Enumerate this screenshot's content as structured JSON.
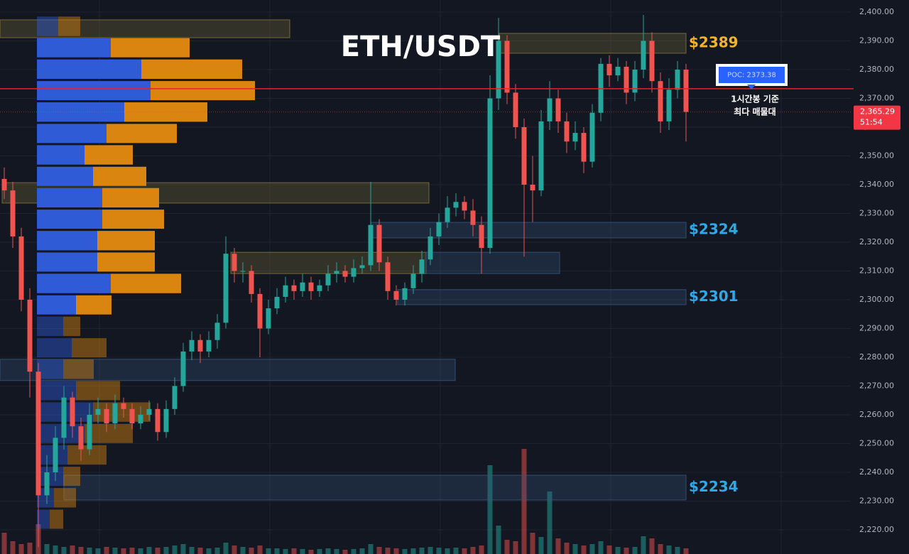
{
  "chart_data": {
    "type": "candlestick",
    "title": "ETH/USDT",
    "ylim": [
      2211.6,
      2404.2
    ],
    "yticks": [
      {
        "value": 2220,
        "label": "2,220.00"
      },
      {
        "value": 2230,
        "label": "2,230.00"
      },
      {
        "value": 2240,
        "label": "2,240.00"
      },
      {
        "value": 2250,
        "label": "2,250.00"
      },
      {
        "value": 2260,
        "label": "2,260.00"
      },
      {
        "value": 2270,
        "label": "2,270.00"
      },
      {
        "value": 2280,
        "label": "2,280.00"
      },
      {
        "value": 2290,
        "label": "2,290.00"
      },
      {
        "value": 2300,
        "label": "2,300.00"
      },
      {
        "value": 2310,
        "label": "2,310.00"
      },
      {
        "value": 2320,
        "label": "2,320.00"
      },
      {
        "value": 2330,
        "label": "2,330.00"
      },
      {
        "value": 2340,
        "label": "2,340.00"
      },
      {
        "value": 2350,
        "label": "2,350.00"
      },
      {
        "value": 2360,
        "label": "2,360.00"
      },
      {
        "value": 2370,
        "label": "2,370.00"
      },
      {
        "value": 2380,
        "label": "2,380.00"
      },
      {
        "value": 2390,
        "label": "2,390.00"
      },
      {
        "value": 2400,
        "label": "2,400.00"
      }
    ],
    "grid": true,
    "up_color": "#26a69a",
    "down_color": "#ef5350",
    "open": [
      2342,
      2338,
      2322,
      2300,
      2275,
      2232,
      2240,
      2252,
      2266,
      2256,
      2248,
      2260,
      2262,
      2257,
      2264,
      2262,
      2257,
      2260,
      2262,
      2254,
      2262,
      2270,
      2282,
      2286,
      2282,
      2286,
      2292,
      2316,
      2310,
      2310,
      2302,
      2290,
      2297,
      2301,
      2305,
      2303,
      2306,
      2303,
      2305,
      2309,
      2310,
      2308,
      2311,
      2312,
      2326,
      2313,
      2303,
      2300,
      2304,
      2309,
      2314,
      2322,
      2327,
      2332,
      2334,
      2331,
      2326,
      2318,
      2370,
      2390,
      2372,
      2360,
      2340,
      2338,
      2362,
      2370,
      2362,
      2355,
      2358,
      2348,
      2365,
      2382,
      2378,
      2381,
      2372,
      2380,
      2390,
      2376,
      2362,
      2373,
      2380
    ],
    "high": [
      2346,
      2341,
      2325,
      2304,
      2278,
      2246,
      2256,
      2270,
      2268,
      2259,
      2264,
      2266,
      2264,
      2267,
      2266,
      2264,
      2263,
      2265,
      2264,
      2265,
      2273,
      2285,
      2289,
      2288,
      2289,
      2295,
      2322,
      2318,
      2313,
      2312,
      2304,
      2300,
      2304,
      2308,
      2307,
      2309,
      2308,
      2307,
      2312,
      2313,
      2312,
      2314,
      2315,
      2341,
      2328,
      2315,
      2305,
      2306,
      2312,
      2317,
      2325,
      2330,
      2336,
      2337,
      2336,
      2335,
      2329,
      2378,
      2398,
      2392,
      2375,
      2363,
      2350,
      2366,
      2376,
      2373,
      2365,
      2362,
      2360,
      2368,
      2384,
      2385,
      2384,
      2383,
      2383,
      2399,
      2393,
      2379,
      2377,
      2383,
      2382
    ],
    "low": [
      2335,
      2318,
      2296,
      2266,
      2214,
      2229,
      2237,
      2248,
      2252,
      2244,
      2246,
      2257,
      2254,
      2255,
      2259,
      2255,
      2255,
      2258,
      2251,
      2252,
      2260,
      2268,
      2279,
      2278,
      2280,
      2283,
      2290,
      2306,
      2306,
      2299,
      2280,
      2288,
      2295,
      2299,
      2300,
      2301,
      2300,
      2301,
      2303,
      2306,
      2306,
      2306,
      2309,
      2310,
      2310,
      2300,
      2298,
      2298,
      2302,
      2306,
      2312,
      2319,
      2325,
      2329,
      2328,
      2322,
      2309,
      2316,
      2366,
      2368,
      2356,
      2315,
      2327,
      2336,
      2359,
      2358,
      2351,
      2352,
      2344,
      2346,
      2362,
      2374,
      2376,
      2368,
      2369,
      2377,
      2372,
      2358,
      2359,
      2370,
      2355
    ],
    "close": [
      2338,
      2322,
      2300,
      2275,
      2232,
      2240,
      2252,
      2266,
      2256,
      2248,
      2260,
      2262,
      2257,
      2264,
      2262,
      2257,
      2260,
      2262,
      2254,
      2262,
      2270,
      2282,
      2286,
      2282,
      2286,
      2292,
      2316,
      2310,
      2310,
      2302,
      2290,
      2297,
      2301,
      2305,
      2303,
      2306,
      2303,
      2305,
      2309,
      2310,
      2308,
      2311,
      2312,
      2326,
      2313,
      2303,
      2300,
      2304,
      2309,
      2314,
      2322,
      2327,
      2332,
      2334,
      2331,
      2326,
      2318,
      2370,
      2390,
      2372,
      2360,
      2340,
      2338,
      2362,
      2370,
      2362,
      2355,
      2358,
      2348,
      2365,
      2382,
      2378,
      2381,
      2372,
      2380,
      2390,
      2376,
      2362,
      2373,
      2380,
      2365.29
    ],
    "volume": [
      30,
      18,
      14,
      16,
      42,
      14,
      12,
      10,
      12,
      10,
      9,
      8,
      10,
      9,
      8,
      9,
      8,
      10,
      9,
      10,
      12,
      14,
      10,
      9,
      8,
      9,
      16,
      12,
      10,
      9,
      12,
      8,
      8,
      7,
      8,
      7,
      6,
      7,
      8,
      7,
      6,
      7,
      8,
      14,
      10,
      9,
      8,
      7,
      8,
      9,
      10,
      9,
      8,
      9,
      8,
      10,
      12,
      125,
      40,
      20,
      18,
      148,
      30,
      24,
      88,
      22,
      16,
      14,
      12,
      14,
      18,
      12,
      10,
      9,
      10,
      25,
      22,
      14,
      12,
      10,
      8
    ],
    "profile": {
      "bins": [
        2220.0,
        2227.4,
        2234.9,
        2242.3,
        2249.8,
        2257.2,
        2264.7,
        2272.1,
        2279.6,
        2287.0,
        2294.5,
        2301.9,
        2309.4,
        2316.8,
        2324.3,
        2331.7,
        2339.2,
        2346.6,
        2354.1,
        2361.5,
        2369.0,
        2376.4,
        2383.9,
        2391.3,
        2398.8
      ],
      "buy": [
        18,
        24,
        37,
        43,
        67,
        79,
        55,
        37,
        49,
        37,
        55,
        104,
        85,
        85,
        92,
        92,
        79,
        67,
        98,
        123,
        160,
        147,
        104,
        30
      ],
      "sell": [
        19,
        31,
        24,
        55,
        68,
        81,
        62,
        43,
        49,
        24,
        50,
        99,
        81,
        81,
        87,
        80,
        75,
        68,
        99,
        117,
        147,
        142,
        111,
        31
      ],
      "value_area": [
        2294.5,
        2391.3
      ],
      "buy_color": "#2f5bd6",
      "sell_color": "#d9850f"
    },
    "poc": {
      "value": 2373.38,
      "label": "POC: 2373.38",
      "color": "#e0252b"
    },
    "poc_note": [
      "1시간봉 기준",
      "최다 매물대"
    ],
    "last_price": {
      "value": 2365.29,
      "label": "2,365.29"
    },
    "countdown": "51:54",
    "zones": [
      {
        "high": 2397.3,
        "low": 2391.1,
        "color": "#8a7a3c"
      },
      {
        "high": 2392.6,
        "low": 2385.7,
        "color": "#8a7a3c",
        "label": "$2389",
        "label_color": "#f0b429"
      },
      {
        "high": 2340.7,
        "low": 2333.6,
        "color": "#8a7a3c"
      },
      {
        "high": 2326.9,
        "low": 2321.5,
        "color": "#3a5a80",
        "label": "$2324",
        "label_color": "#2ea8e6"
      },
      {
        "high": 2316.5,
        "low": 2309.1,
        "color": "#8a7a3c"
      },
      {
        "high": 2316.5,
        "low": 2309.1,
        "color": "#3a5a80"
      },
      {
        "high": 2303.5,
        "low": 2298.3,
        "color": "#3a5a80",
        "label": "$2301",
        "label_color": "#2ea8e6"
      },
      {
        "high": 2279.3,
        "low": 2271.9,
        "color": "#3a5a80"
      },
      {
        "high": 2239.0,
        "low": 2230.4,
        "color": "#3a5a80",
        "label": "$2234",
        "label_color": "#2ea8e6"
      }
    ]
  }
}
